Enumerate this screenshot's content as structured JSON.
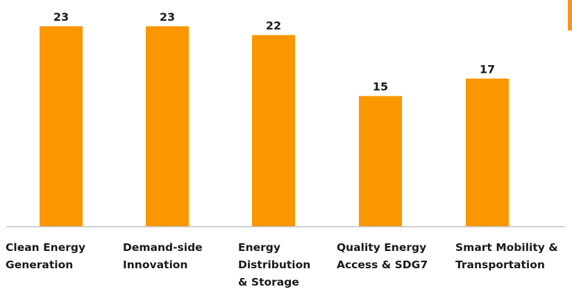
{
  "colors": {
    "bar": "#fa9600",
    "axis": "#bfbfbf",
    "text": "#1a1a1a",
    "edge_marker": "#f7941d"
  },
  "chart_data": {
    "type": "bar",
    "categories": [
      [
        "Clean Energy",
        "Generation"
      ],
      [
        "Demand-side",
        "Innovation"
      ],
      [
        "Energy",
        "Distribution",
        "& Storage"
      ],
      [
        "Quality Energy",
        "Access & SDG7"
      ],
      [
        "Smart Mobility &",
        "Transportation"
      ]
    ],
    "values": [
      23,
      23,
      22,
      15,
      17
    ],
    "title": "",
    "xlabel": "",
    "ylabel": "",
    "ylim": [
      0,
      23
    ],
    "grid": false,
    "legend": "none",
    "data_labels": true
  }
}
